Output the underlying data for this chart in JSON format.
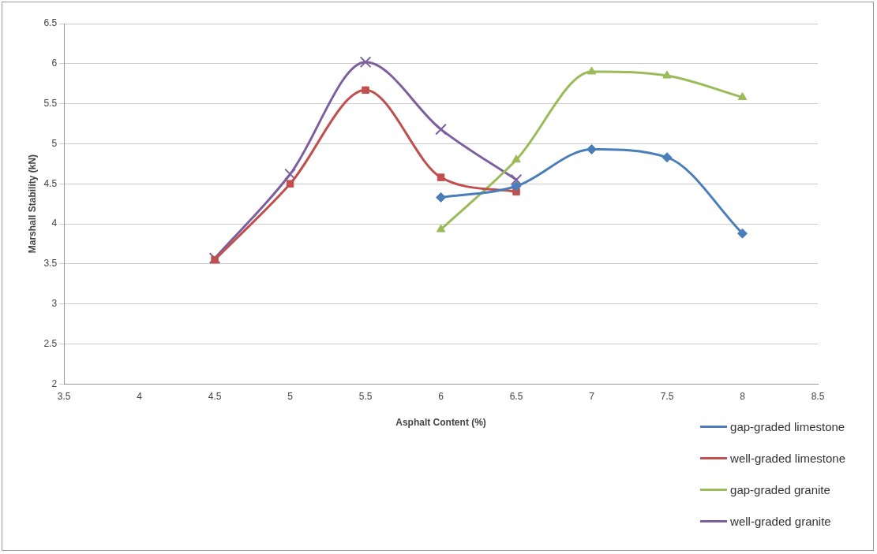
{
  "chart_data": {
    "type": "line",
    "xlabel": "Asphalt Content (%)",
    "ylabel": "Marshall Stability (kN)",
    "xlim": [
      3.5,
      8.5
    ],
    "xticks": [
      3.5,
      4,
      4.5,
      5,
      5.5,
      6,
      6.5,
      7,
      7.5,
      8,
      8.5
    ],
    "ylim": [
      2,
      6.5
    ],
    "yticks": [
      2,
      2.5,
      3,
      3.5,
      4,
      4.5,
      5,
      5.5,
      6,
      6.5
    ],
    "grid": "y",
    "legend": "bottom right",
    "line_style": "solid",
    "series": [
      {
        "name": "gap-graded limestone",
        "color": "#4a7ebb",
        "marker": "diamond",
        "x": [
          6,
          6.5,
          7,
          7.5,
          8
        ],
        "values": [
          4.33,
          4.47,
          4.93,
          4.83,
          3.88
        ]
      },
      {
        "name": "well-graded limestone",
        "color": "#c0504d",
        "marker": "square",
        "x": [
          4.5,
          5,
          5.5,
          6,
          6.5
        ],
        "values": [
          3.55,
          4.5,
          5.67,
          4.58,
          4.4
        ]
      },
      {
        "name": "gap-graded granite",
        "color": "#9bbb59",
        "marker": "triangle",
        "x": [
          6,
          6.5,
          7,
          7.5,
          8
        ],
        "values": [
          3.93,
          4.8,
          5.9,
          5.85,
          5.58
        ]
      },
      {
        "name": "well-graded granite",
        "color": "#7d5fa0",
        "marker": "cross",
        "x": [
          4.5,
          5,
          5.5,
          6,
          6.5
        ],
        "values": [
          3.57,
          4.62,
          6.02,
          5.18,
          4.55
        ]
      }
    ]
  }
}
